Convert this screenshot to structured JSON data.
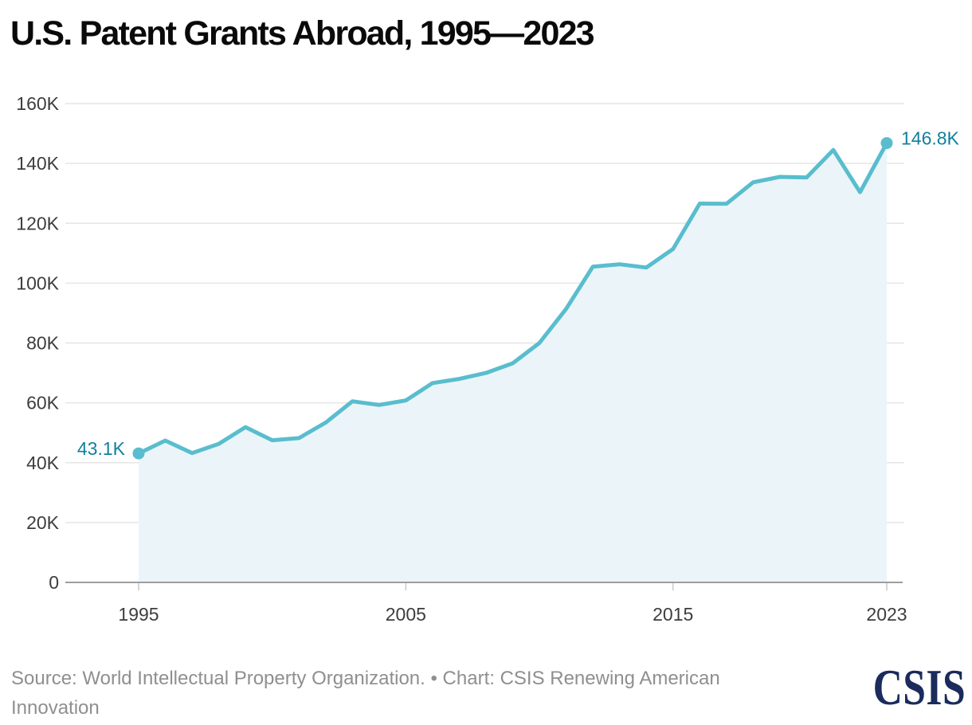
{
  "page": {
    "title": "U.S. Patent Grants Abroad, 1995—2023",
    "source_note": "Source: World Intellectual Property Organization. • Chart: CSIS Renewing American Innovation",
    "logo_text": "CSIS"
  },
  "colors": {
    "title": "#0a0a0a",
    "line": "#59bdce",
    "area_fill": "#ebf5f9",
    "point_label": "#12809d",
    "grid": "#e6e6e6",
    "axis": "#9e9e9e",
    "tick": "#c9c9c9",
    "tick_label": "#3d3d3d",
    "source_text": "#8f8f8f",
    "logo": "#1a2b5c"
  },
  "chart_data": {
    "type": "area",
    "title": "U.S. Patent Grants Abroad, 1995—2023",
    "x": [
      1995,
      1996,
      1997,
      1998,
      1999,
      2000,
      2001,
      2002,
      2003,
      2004,
      2005,
      2006,
      2007,
      2008,
      2009,
      2010,
      2011,
      2012,
      2013,
      2014,
      2015,
      2016,
      2017,
      2018,
      2019,
      2020,
      2021,
      2022,
      2023
    ],
    "values_thousands": [
      43.1,
      47.4,
      43.2,
      46.3,
      51.9,
      47.5,
      48.2,
      53.4,
      60.5,
      59.3,
      60.8,
      66.6,
      68.0,
      70.0,
      73.2,
      80.0,
      91.4,
      105.5,
      106.3,
      105.2,
      111.4,
      126.6,
      126.5,
      133.7,
      135.5,
      135.3,
      144.5,
      130.4,
      146.8
    ],
    "unit": "K",
    "ylim_thousands": [
      0,
      160
    ],
    "ytick_labels": [
      "0",
      "20K",
      "40K",
      "60K",
      "80K",
      "100K",
      "120K",
      "140K",
      "160K"
    ],
    "ytick_step_thousands": 20,
    "xtick_labels": [
      1995,
      2005,
      2015,
      2023
    ],
    "first_point_label": "43.1K",
    "last_point_label": "146.8K",
    "grid": true,
    "legend": false
  }
}
